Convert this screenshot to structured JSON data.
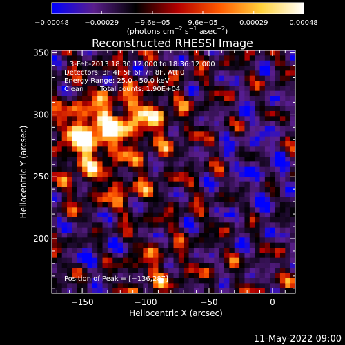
{
  "chart_data": {
    "type": "heatmap",
    "title": "Reconstructed RHESSI Image",
    "xlabel": "Heliocentric X (arcsec)",
    "ylabel": "Heliocentric Y (arcsec)",
    "xlim": [
      -174,
      18
    ],
    "ylim": [
      156,
      352
    ],
    "xticks": [
      -150,
      -100,
      -50,
      0
    ],
    "xtick_labels": [
      "−150",
      "−100",
      "−50",
      "0"
    ],
    "yticks": [
      200,
      250,
      300,
      350
    ],
    "ytick_labels": [
      "200",
      "250",
      "300",
      "350"
    ],
    "colorbar": {
      "min": -0.00048,
      "max": 0.00048,
      "ticks": [
        -0.00048,
        -0.00029,
        -9.6e-05,
        9.6e-05,
        0.00029,
        0.00048
      ],
      "tick_labels": [
        "−0.00048",
        "−0.00029",
        "−9.6e−05",
        "9.6e−05",
        "0.00029",
        "0.00048"
      ],
      "units_prefix": "(photons cm",
      "units_exp1": "−2",
      "units_mid1": " s",
      "units_exp2": "−1",
      "units_mid2": " asec",
      "units_exp3": "−2",
      "units_suffix": ")",
      "colors": [
        "#0000ff",
        "#5a1e8c",
        "#000000",
        "#b40000",
        "#ff5a00",
        "#ffd23c",
        "#ffffff"
      ]
    },
    "annotations": {
      "time_range": "3-Feb-2013 18:30:12.000 to 18:36:12.000",
      "detectors": "Detectors: 3F 4F 5F 6F 7F 8F, Att 0",
      "energy": "Energy Range: 25.0 - 50.0 keV",
      "clean_label": "Clean",
      "total_counts": "Total counts: 1.90E+04",
      "peak": "Position of Peak = [−136,287]"
    },
    "peak": [
      -136,
      287
    ],
    "footer_date": "11-May-2022 09:00"
  }
}
